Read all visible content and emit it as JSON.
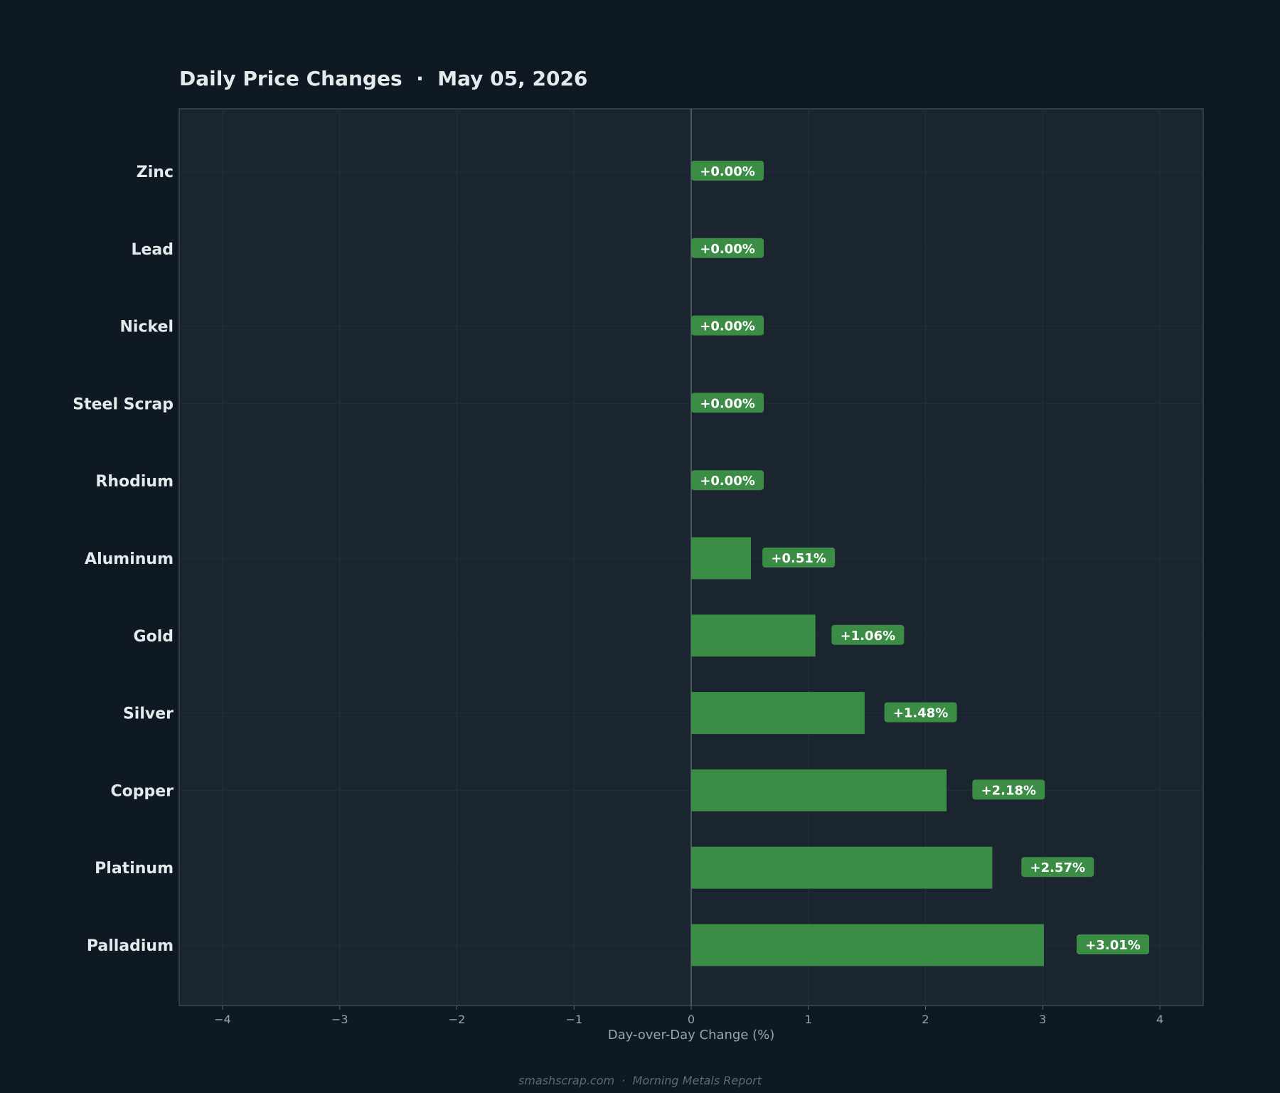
{
  "title": "Daily Price Changes  ·  May 05, 2026",
  "footer": "smashscrap.com  ·  Morning Metals Report",
  "colors": {
    "background": "#0f1923",
    "plot_background": "#1b2530",
    "positive_bar": "#3b8c44",
    "label_box": "#3b8c44",
    "text": "#e6e9ec",
    "muted_text": "#9aa4ae"
  },
  "chart_data": {
    "type": "bar",
    "orientation": "horizontal",
    "categories": [
      "Zinc",
      "Lead",
      "Nickel",
      "Steel Scrap",
      "Rhodium",
      "Aluminum",
      "Gold",
      "Silver",
      "Copper",
      "Platinum",
      "Palladium"
    ],
    "values": [
      0.0,
      0.0,
      0.0,
      0.0,
      0.0,
      0.51,
      1.06,
      1.48,
      2.18,
      2.57,
      3.01
    ],
    "value_labels": [
      "+0.00%",
      "+0.00%",
      "+0.00%",
      "+0.00%",
      "+0.00%",
      "+0.51%",
      "+1.06%",
      "+1.48%",
      "+2.18%",
      "+2.57%",
      "+3.01%"
    ],
    "xlabel": "Day-over-Day Change (%)",
    "ylabel": "",
    "xlim": [
      -4.37,
      4.37
    ],
    "x_ticks": [
      -4,
      -3,
      -2,
      -1,
      0,
      1,
      2,
      3,
      4
    ],
    "x_tick_labels": [
      "−4",
      "−3",
      "−2",
      "−1",
      "0",
      "1",
      "2",
      "3",
      "4"
    ],
    "grid": true
  }
}
